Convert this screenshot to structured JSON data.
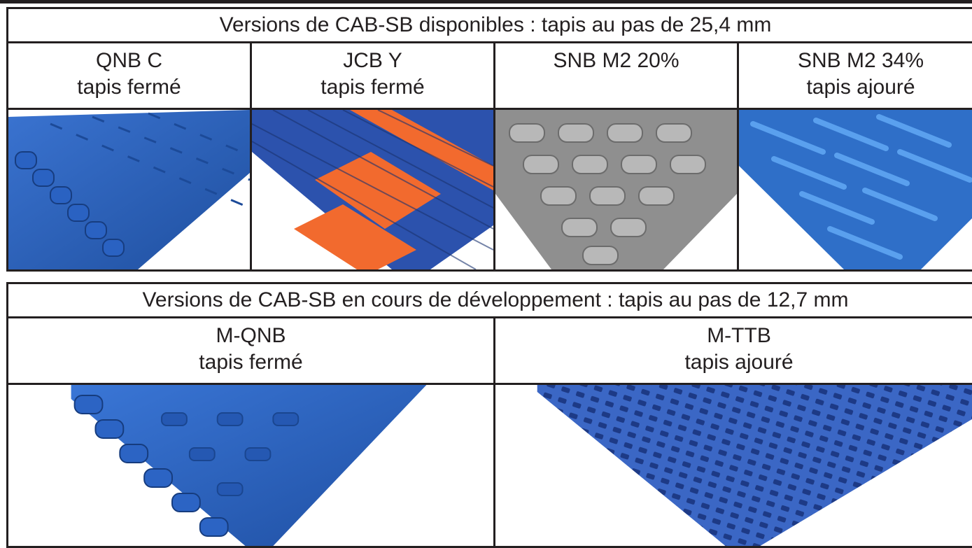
{
  "section1": {
    "title": "Versions de CAB-SB disponibles : tapis au pas de 25,4 mm",
    "items": [
      {
        "name": "QNB C",
        "desc": "tapis fermé",
        "color": "#2b5fb8"
      },
      {
        "name": "JCB Y",
        "desc": "tapis fermé",
        "color": "#2c52ad",
        "stripe": "#f26a2e"
      },
      {
        "name": "SNB M2 20%",
        "desc": "",
        "color": "#9a9a9a"
      },
      {
        "name": "SNB M2 34%",
        "desc": "tapis ajouré",
        "color": "#3a7fd8"
      }
    ]
  },
  "section2": {
    "title": "Versions de CAB-SB en cours de développement : tapis au pas de 12,7 mm",
    "items": [
      {
        "name": "M-QNB",
        "desc": "tapis fermé",
        "color": "#2d62c0"
      },
      {
        "name": "M-TTB",
        "desc": "tapis ajouré",
        "color": "#3b67c5"
      }
    ]
  }
}
